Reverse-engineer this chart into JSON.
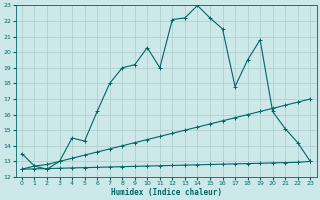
{
  "xlabel": "Humidex (Indice chaleur)",
  "bg_color": "#cce8e8",
  "grid_color": "#aacccc",
  "line_color": "#006666",
  "xlim": [
    -0.5,
    23.5
  ],
  "ylim": [
    12,
    23
  ],
  "xticks": [
    0,
    1,
    2,
    3,
    4,
    5,
    6,
    7,
    8,
    9,
    10,
    11,
    12,
    13,
    14,
    15,
    16,
    17,
    18,
    19,
    20,
    21,
    22,
    23
  ],
  "yticks": [
    12,
    13,
    14,
    15,
    16,
    17,
    18,
    19,
    20,
    21,
    22,
    23
  ],
  "curve1_x": [
    0,
    1,
    2,
    3,
    4,
    5,
    6,
    7,
    8,
    9,
    10,
    11,
    12,
    13,
    14,
    15,
    16,
    17,
    18,
    19,
    20,
    21,
    22,
    23
  ],
  "curve1_y": [
    13.5,
    12.7,
    12.5,
    13.0,
    14.5,
    14.3,
    16.2,
    18.0,
    19.0,
    19.2,
    20.3,
    19.0,
    22.1,
    22.2,
    23.0,
    22.2,
    21.5,
    17.8,
    19.5,
    20.8,
    16.2,
    15.1,
    14.2,
    13.0
  ],
  "curve2_x": [
    0,
    1,
    2,
    3,
    4,
    5,
    6,
    7,
    8,
    9,
    10,
    11,
    12,
    13,
    14,
    15,
    16,
    17,
    18,
    19,
    20,
    21,
    22,
    23
  ],
  "curve2_y": [
    12.5,
    12.7,
    12.8,
    13.0,
    13.2,
    13.4,
    13.6,
    13.8,
    14.0,
    14.2,
    14.4,
    14.6,
    14.8,
    15.0,
    15.2,
    15.4,
    15.6,
    15.8,
    16.0,
    16.2,
    16.4,
    16.6,
    16.8,
    17.0
  ],
  "curve3_x": [
    0,
    1,
    2,
    3,
    4,
    5,
    6,
    7,
    8,
    9,
    10,
    11,
    12,
    13,
    14,
    15,
    16,
    17,
    18,
    19,
    20,
    21,
    22,
    23
  ],
  "curve3_y": [
    12.5,
    12.52,
    12.54,
    12.56,
    12.58,
    12.6,
    12.62,
    12.64,
    12.66,
    12.68,
    12.7,
    12.72,
    12.74,
    12.76,
    12.78,
    12.8,
    12.82,
    12.84,
    12.86,
    12.88,
    12.9,
    12.92,
    12.94,
    13.0
  ]
}
